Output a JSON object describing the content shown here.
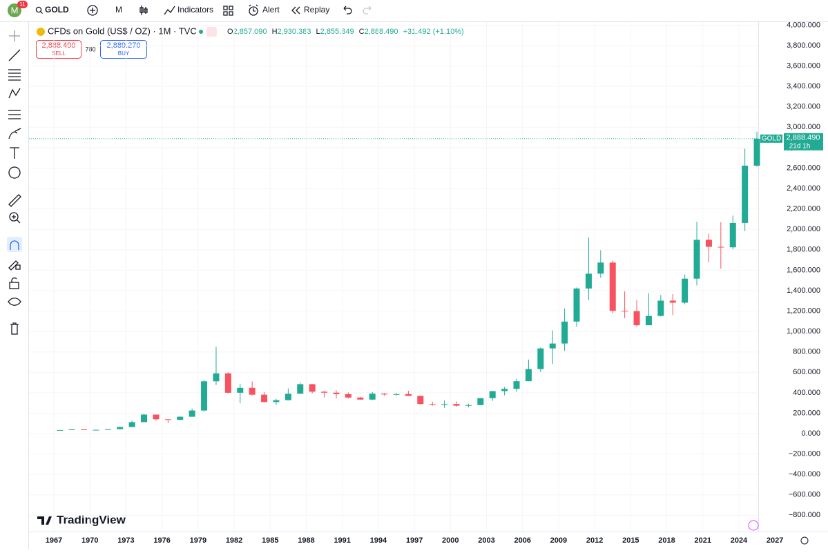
{
  "toolbar": {
    "avatar": "M",
    "badge": "11",
    "symbol": "GOLD",
    "interval": "M",
    "indicators": "Indicators",
    "alert": "Alert",
    "replay": "Replay"
  },
  "legend": {
    "title": "CFDs on Gold (US$ / OZ) · 1M · TVC",
    "ohlc": [
      {
        "key": "O",
        "text": "2,857.090"
      },
      {
        "key": "H",
        "text": "2,930.383"
      },
      {
        "key": "L",
        "text": "2,855.849"
      },
      {
        "key": "C",
        "text": "2,888.490"
      }
    ],
    "change": "+31.492 (+1.10%)",
    "sell": {
      "price": "2,888.490",
      "label": "SELL"
    },
    "spread": "780",
    "buy": {
      "price": "2,889.270",
      "label": "BUY"
    }
  },
  "price_tag": {
    "symbol": "GOLD",
    "countdown": "21d 1h"
  },
  "logo": "TradingView",
  "chart_data": {
    "type": "candlestick",
    "x": [
      1967,
      1968,
      1969,
      1970,
      1971,
      1972,
      1973,
      1974,
      1975,
      1976,
      1977,
      1978,
      1979,
      1980,
      1981,
      1982,
      1983,
      1984,
      1985,
      1986,
      1987,
      1988,
      1989,
      1990,
      1991,
      1992,
      1993,
      1994,
      1995,
      1996,
      1997,
      1998,
      1999,
      2000,
      2001,
      2002,
      2003,
      2004,
      2005,
      2006,
      2007,
      2008,
      2009,
      2010,
      2011,
      2012,
      2013,
      2014,
      2015,
      2016,
      2017,
      2018,
      2019,
      2020,
      2021,
      2022,
      2023,
      2024,
      2025
    ],
    "open": [
      35,
      35,
      41,
      35,
      37,
      43,
      64,
      112,
      186,
      140,
      134,
      165,
      226,
      512,
      590,
      400,
      448,
      381,
      309,
      327,
      390,
      484,
      410,
      401,
      386,
      353,
      333,
      391,
      383,
      387,
      369,
      290,
      288,
      290,
      273,
      279,
      347,
      416,
      438,
      513,
      632,
      834,
      882,
      1097,
      1421,
      1566,
      1675,
      1202,
      1199,
      1061,
      1152,
      1302,
      1282,
      1517,
      1898,
      1829,
      1824,
      2063,
      2624
    ],
    "high": [
      35,
      43,
      44,
      39,
      44,
      70,
      127,
      195,
      186,
      140,
      168,
      245,
      525,
      850,
      600,
      488,
      510,
      405,
      340,
      442,
      500,
      485,
      418,
      423,
      403,
      360,
      407,
      397,
      396,
      418,
      369,
      313,
      326,
      316,
      293,
      349,
      417,
      456,
      538,
      725,
      842,
      1011,
      1226,
      1431,
      1920,
      1796,
      1694,
      1392,
      1307,
      1375,
      1357,
      1366,
      1557,
      2075,
      1959,
      2070,
      2135,
      2790,
      2957
    ],
    "low": [
      35,
      35,
      35,
      35,
      37,
      43,
      64,
      112,
      128,
      103,
      130,
      165,
      216,
      475,
      391,
      297,
      374,
      303,
      284,
      326,
      390,
      395,
      355,
      345,
      344,
      330,
      326,
      370,
      372,
      367,
      283,
      273,
      252,
      263,
      256,
      278,
      320,
      375,
      411,
      513,
      603,
      681,
      810,
      1045,
      1308,
      1527,
      1180,
      1131,
      1046,
      1061,
      1146,
      1160,
      1266,
      1451,
      1677,
      1615,
      1805,
      1984,
      2614
    ],
    "close": [
      35,
      41,
      35,
      37,
      43,
      64,
      112,
      186,
      140,
      134,
      165,
      226,
      512,
      590,
      400,
      448,
      381,
      309,
      327,
      390,
      484,
      410,
      401,
      386,
      353,
      333,
      391,
      383,
      387,
      369,
      290,
      288,
      290,
      273,
      279,
      347,
      416,
      438,
      513,
      632,
      834,
      882,
      1097,
      1421,
      1566,
      1675,
      1202,
      1199,
      1061,
      1152,
      1302,
      1282,
      1517,
      1898,
      1829,
      1824,
      2063,
      2624,
      2888.49
    ],
    "up_color": "#22ab94",
    "down_color": "#f7525f",
    "current_price": {
      "value": 2888.49,
      "label": "2,888.490"
    },
    "xlim": [
      1964.93,
      2028.6
    ],
    "ylim": [
      -960,
      4030
    ],
    "xticks": [
      1967,
      1970,
      1973,
      1976,
      1979,
      1982,
      1985,
      1988,
      1991,
      1994,
      1997,
      2000,
      2003,
      2006,
      2009,
      2012,
      2015,
      2018,
      2021,
      2024,
      2027
    ],
    "yticks": [
      {
        "value": -800,
        "label": "−800.000"
      },
      {
        "value": -600,
        "label": "−600.000"
      },
      {
        "value": -400,
        "label": "−400.000"
      },
      {
        "value": -200,
        "label": "−200.000"
      },
      {
        "value": 0,
        "label": "0.000"
      },
      {
        "value": 200,
        "label": "200.000"
      },
      {
        "value": 400,
        "label": "400.000"
      },
      {
        "value": 600,
        "label": "600.000"
      },
      {
        "value": 800,
        "label": "800.000"
      },
      {
        "value": 1000,
        "label": "1,000.000"
      },
      {
        "value": 1200,
        "label": "1,200.000"
      },
      {
        "value": 1400,
        "label": "1,400.000"
      },
      {
        "value": 1600,
        "label": "1,600.000"
      },
      {
        "value": 1800,
        "label": "1,800.000"
      },
      {
        "value": 2000,
        "label": "2,000.000"
      },
      {
        "value": 2200,
        "label": "2,200.000"
      },
      {
        "value": 2400,
        "label": "2,400.000"
      },
      {
        "value": 2600,
        "label": "2,600.000"
      },
      {
        "value": 2800,
        "label": "2,800.000"
      },
      {
        "value": 3000,
        "label": "3,000.000"
      },
      {
        "value": 3200,
        "label": "3,200.000"
      },
      {
        "value": 3400,
        "label": "3,400.000"
      },
      {
        "value": 3600,
        "label": "3,600.000"
      },
      {
        "value": 3800,
        "label": "3,800.000"
      },
      {
        "value": 4000,
        "label": "4,000.000"
      }
    ],
    "grid": true
  }
}
